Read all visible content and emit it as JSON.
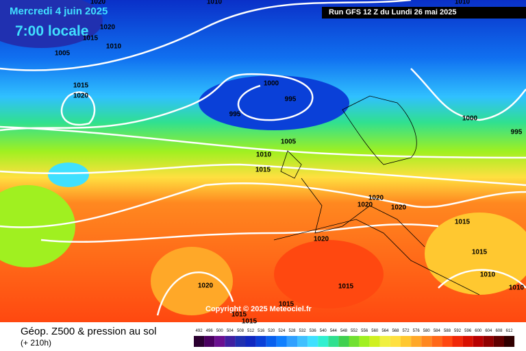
{
  "header": {
    "date": "Mercredi 4 juin 2025",
    "time": "7:00 locale",
    "run": "Run GFS 12 Z du Lundi 26 mai 2025"
  },
  "footer": {
    "title": "Géop. Z500 & pression au sol",
    "lead": "(+ 210h)",
    "copyright": "Copyright © 2025 Meteociel.fr"
  },
  "legend": {
    "values": [
      492,
      496,
      500,
      504,
      508,
      512,
      516,
      520,
      524,
      528,
      532,
      536,
      540,
      544,
      548,
      552,
      556,
      560,
      564,
      568,
      572,
      576,
      580,
      584,
      588,
      592,
      596,
      600,
      604,
      608,
      612
    ],
    "colors": [
      "#2a0030",
      "#4a0060",
      "#6a1090",
      "#4020a0",
      "#2030b0",
      "#1028c0",
      "#0a40d8",
      "#0860ee",
      "#1080ff",
      "#30a0ff",
      "#40c0ff",
      "#40e0ff",
      "#30f0d0",
      "#30e090",
      "#40d050",
      "#70e030",
      "#a0f020",
      "#d0f020",
      "#f0f040",
      "#ffe040",
      "#ffc830",
      "#ffa828",
      "#ff8820",
      "#ff6818",
      "#ff4810",
      "#f02808",
      "#d81000",
      "#b80000",
      "#900000",
      "#600000",
      "#300000"
    ]
  },
  "isobars": [
    1010,
    1020,
    1020,
    1015,
    1010,
    1005,
    1015,
    1020,
    1000,
    995,
    995,
    1000,
    995,
    1005,
    1010,
    1015,
    1020,
    1020,
    1020,
    1015,
    1020,
    1015,
    1010,
    1010,
    1020,
    1015,
    1015,
    1015,
    1015,
    1010
  ]
}
